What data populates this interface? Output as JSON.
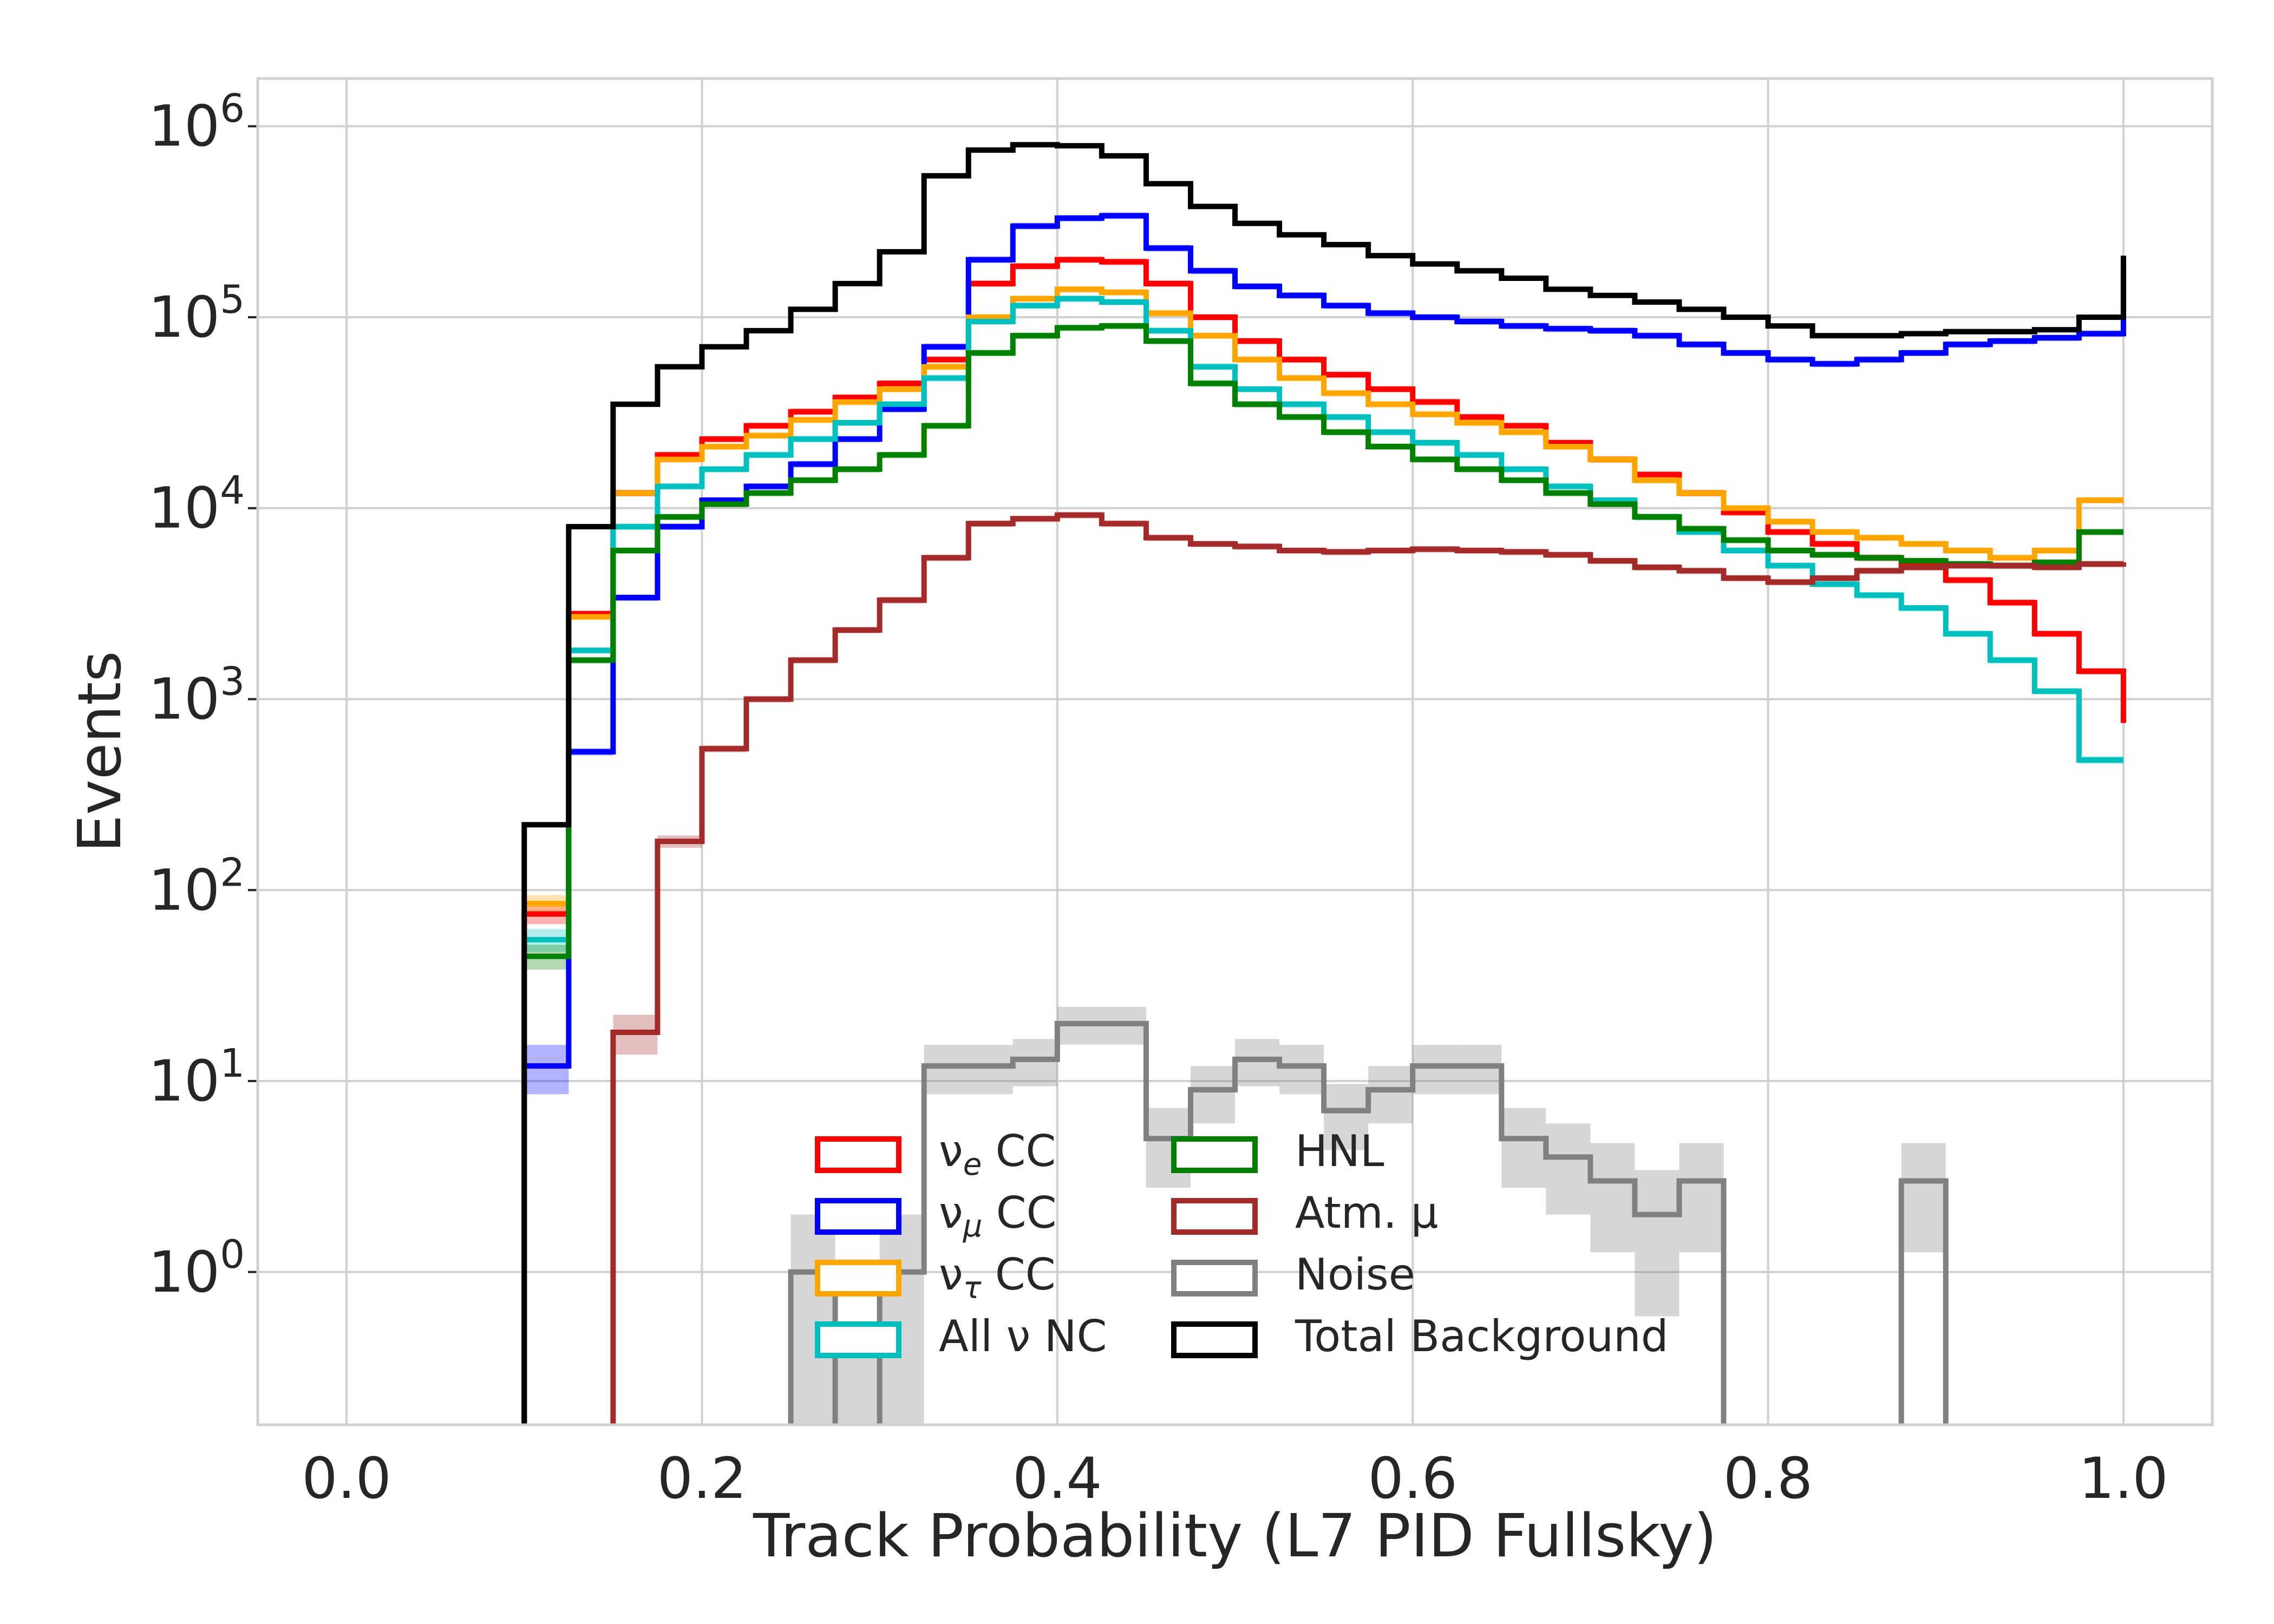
{
  "chart_data": {
    "type": "step-histogram",
    "xlabel": "Track Probability (L7 PID Fullsky)",
    "ylabel": "Events",
    "xlim": [
      -0.05,
      1.05
    ],
    "ylim_log10": [
      -0.8,
      6.25
    ],
    "y_scale": "log",
    "grid": true,
    "legend_position": "lower-center",
    "x_ticks": [
      {
        "value": 0.0,
        "label": "0.0"
      },
      {
        "value": 0.2,
        "label": "0.2"
      },
      {
        "value": 0.4,
        "label": "0.4"
      },
      {
        "value": 0.6,
        "label": "0.6"
      },
      {
        "value": 0.8,
        "label": "0.8"
      },
      {
        "value": 1.0,
        "label": "1.0"
      }
    ],
    "y_ticks": [
      {
        "exp": 0,
        "label_base": "10",
        "label_exp": "0"
      },
      {
        "exp": 1,
        "label_base": "10",
        "label_exp": "1"
      },
      {
        "exp": 2,
        "label_base": "10",
        "label_exp": "2"
      },
      {
        "exp": 3,
        "label_base": "10",
        "label_exp": "3"
      },
      {
        "exp": 4,
        "label_base": "10",
        "label_exp": "4"
      },
      {
        "exp": 5,
        "label_base": "10",
        "label_exp": "5"
      },
      {
        "exp": 6,
        "label_base": "10",
        "label_exp": "6"
      }
    ],
    "bin_edges": [
      0.1,
      0.125,
      0.15,
      0.175,
      0.2,
      0.225,
      0.25,
      0.275,
      0.3,
      0.325,
      0.35,
      0.375,
      0.4,
      0.425,
      0.45,
      0.475,
      0.5,
      0.525,
      0.55,
      0.575,
      0.6,
      0.625,
      0.65,
      0.675,
      0.7,
      0.725,
      0.75,
      0.775,
      0.8,
      0.825,
      0.85,
      0.875,
      0.9,
      0.925,
      0.95,
      0.975,
      1.0
    ],
    "series": [
      {
        "name": "ν_e CC",
        "legend_main": "ν",
        "legend_sub": "e",
        "legend_tail": " CC",
        "color": "#ff0000",
        "band_opacity": 0.3,
        "values": [
          75,
          2800,
          12000,
          19000,
          23000,
          27000,
          32000,
          38000,
          45000,
          60000,
          150000,
          185000,
          200000,
          195000,
          150000,
          100000,
          75000,
          60000,
          50000,
          42000,
          36000,
          30000,
          27000,
          22000,
          18000,
          15000,
          12000,
          9500,
          7500,
          6500,
          5500,
          5000,
          4200,
          3200,
          2200,
          1400,
          750
        ]
      },
      {
        "name": "ν_μ CC",
        "legend_main": "ν",
        "legend_sub": "μ",
        "legend_tail": " CC",
        "color": "#0000ff",
        "band_opacity": 0.3,
        "values": [
          12,
          530,
          3400,
          8000,
          11000,
          13000,
          17000,
          23000,
          33000,
          70000,
          200000,
          300000,
          330000,
          340000,
          230000,
          175000,
          145000,
          130000,
          115000,
          105000,
          100000,
          95000,
          90000,
          87000,
          85000,
          80000,
          72000,
          65000,
          60000,
          57000,
          60000,
          65000,
          72000,
          75000,
          78000,
          82000,
          190000
        ]
      },
      {
        "name": "ν_τ CC",
        "legend_main": "ν",
        "legend_sub": "τ",
        "legend_tail": " CC",
        "color": "#ffa500",
        "band_opacity": 0.3,
        "values": [
          85,
          2700,
          12000,
          18000,
          21000,
          24000,
          29000,
          36000,
          42000,
          55000,
          100000,
          125000,
          140000,
          135000,
          105000,
          80000,
          60000,
          48000,
          40000,
          35000,
          31000,
          28000,
          25000,
          21000,
          18000,
          14000,
          12000,
          10000,
          8500,
          7500,
          7000,
          6500,
          6000,
          5500,
          6000,
          11000,
          11000
        ]
      },
      {
        "name": "All ν NC",
        "legend_main": "All ν",
        "legend_sub": "",
        "legend_tail": " NC",
        "color": "#00bfbf",
        "band_opacity": 0.3,
        "values": [
          55,
          1800,
          8000,
          13000,
          16000,
          19000,
          23000,
          28000,
          35000,
          48000,
          95000,
          115000,
          125000,
          120000,
          85000,
          55000,
          42000,
          35000,
          30000,
          25000,
          22000,
          19000,
          16000,
          13000,
          11000,
          9000,
          7500,
          6000,
          5000,
          4000,
          3500,
          3000,
          2200,
          1600,
          1100,
          480,
          480
        ]
      },
      {
        "name": "HNL",
        "legend_main": "HNL",
        "legend_sub": "",
        "legend_tail": "",
        "color": "#008000",
        "band_opacity": 0.3,
        "values": [
          45,
          1600,
          6000,
          9000,
          10500,
          12000,
          14000,
          16000,
          19000,
          27000,
          65000,
          80000,
          88000,
          90000,
          75000,
          45000,
          35000,
          30000,
          25000,
          21000,
          18000,
          16000,
          14000,
          12000,
          10500,
          9000,
          7800,
          6800,
          6000,
          5700,
          5500,
          5300,
          5100,
          5000,
          5200,
          7500,
          7500
        ]
      },
      {
        "name": "Atm. μ",
        "legend_main": "Atm. μ",
        "legend_sub": "",
        "legend_tail": "",
        "color": "#a52a2a",
        "band_opacity": 0.3,
        "values": [
          0,
          0,
          18,
          180,
          550,
          1000,
          1600,
          2300,
          3300,
          5500,
          8300,
          8800,
          9200,
          8300,
          7000,
          6500,
          6300,
          6000,
          5900,
          6000,
          6100,
          6000,
          5900,
          5700,
          5300,
          4900,
          4700,
          4300,
          4100,
          4300,
          4700,
          4900,
          5000,
          5000,
          4900,
          5100,
          5200
        ]
      },
      {
        "name": "Noise",
        "legend_main": "Noise",
        "legend_sub": "",
        "legend_tail": "",
        "color": "#808080",
        "band_opacity": 0.32,
        "values": [
          0,
          0,
          0,
          0,
          0,
          0,
          1,
          0.1,
          1,
          12,
          12,
          13,
          20,
          20,
          5,
          9,
          13,
          12,
          7,
          9,
          12,
          12,
          5,
          4,
          3,
          2,
          3,
          0,
          0,
          0,
          0,
          3,
          0,
          0,
          0,
          0,
          0
        ]
      },
      {
        "name": "Total Background",
        "legend_main": "Total Background",
        "legend_sub": "",
        "legend_tail": "",
        "color": "#000000",
        "band_opacity": 0,
        "values": [
          220,
          8000,
          35000,
          55000,
          70000,
          85000,
          110000,
          150000,
          220000,
          550000,
          750000,
          800000,
          790000,
          700000,
          500000,
          380000,
          310000,
          270000,
          240000,
          210000,
          190000,
          175000,
          160000,
          140000,
          130000,
          120000,
          110000,
          100000,
          90000,
          80000,
          80000,
          82000,
          84000,
          84000,
          86000,
          100000,
          210000
        ]
      }
    ],
    "legend_columns": [
      [
        "ν_e CC",
        "ν_μ CC",
        "ν_τ CC",
        "All ν NC"
      ],
      [
        "HNL",
        "Atm. μ",
        "Noise",
        "Total Background"
      ]
    ]
  }
}
